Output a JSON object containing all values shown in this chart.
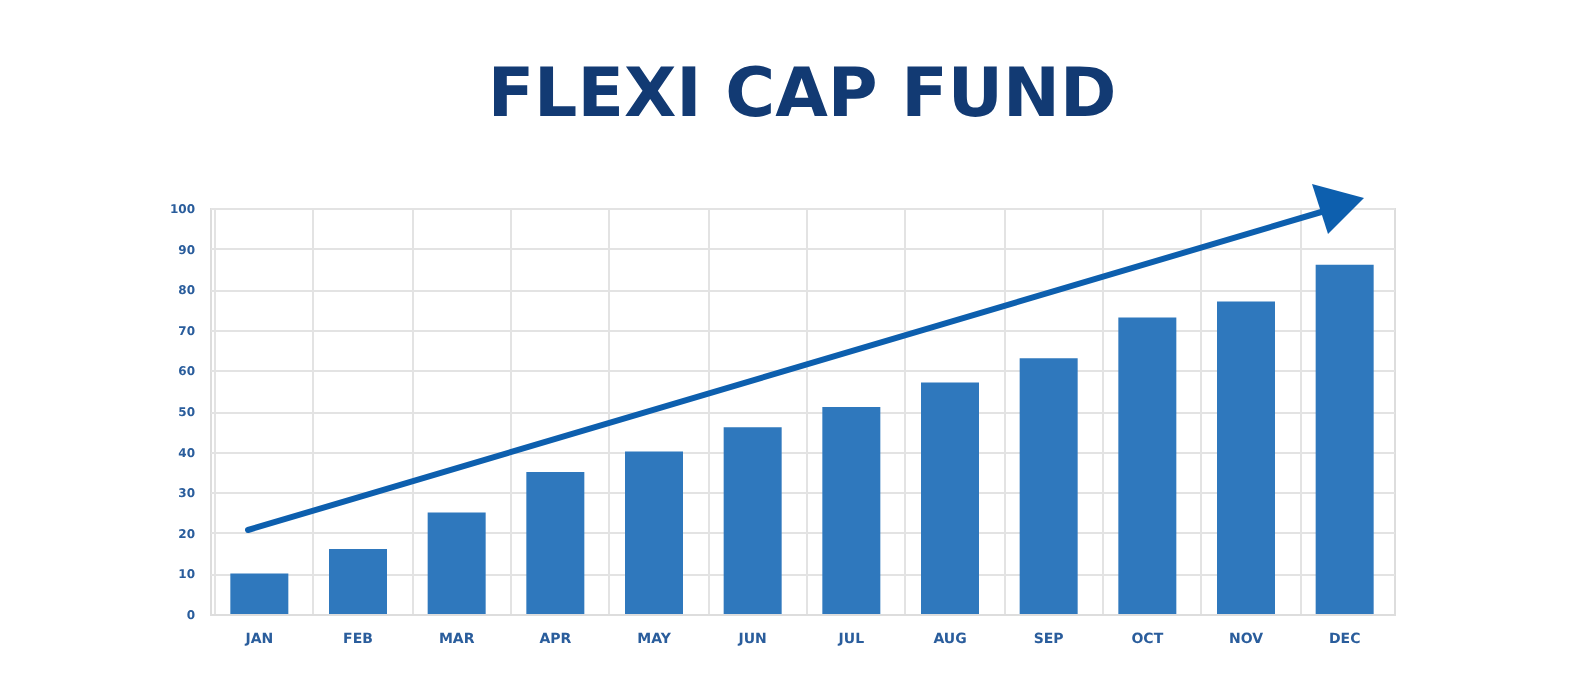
{
  "chart_data": {
    "type": "bar",
    "title": "FLEXI CAP FUND",
    "categories": [
      "JAN",
      "FEB",
      "MAR",
      "APR",
      "MAY",
      "JUN",
      "JUL",
      "AUG",
      "SEP",
      "OCT",
      "NOV",
      "DEC"
    ],
    "values": [
      10,
      16,
      25,
      35,
      40,
      46,
      51,
      57,
      63,
      73,
      77,
      86
    ],
    "color": "#2f78bd",
    "ylim": [
      0,
      100
    ],
    "yticks": [
      0,
      10,
      20,
      30,
      40,
      50,
      60,
      70,
      80,
      90,
      100
    ],
    "grid": true
  }
}
